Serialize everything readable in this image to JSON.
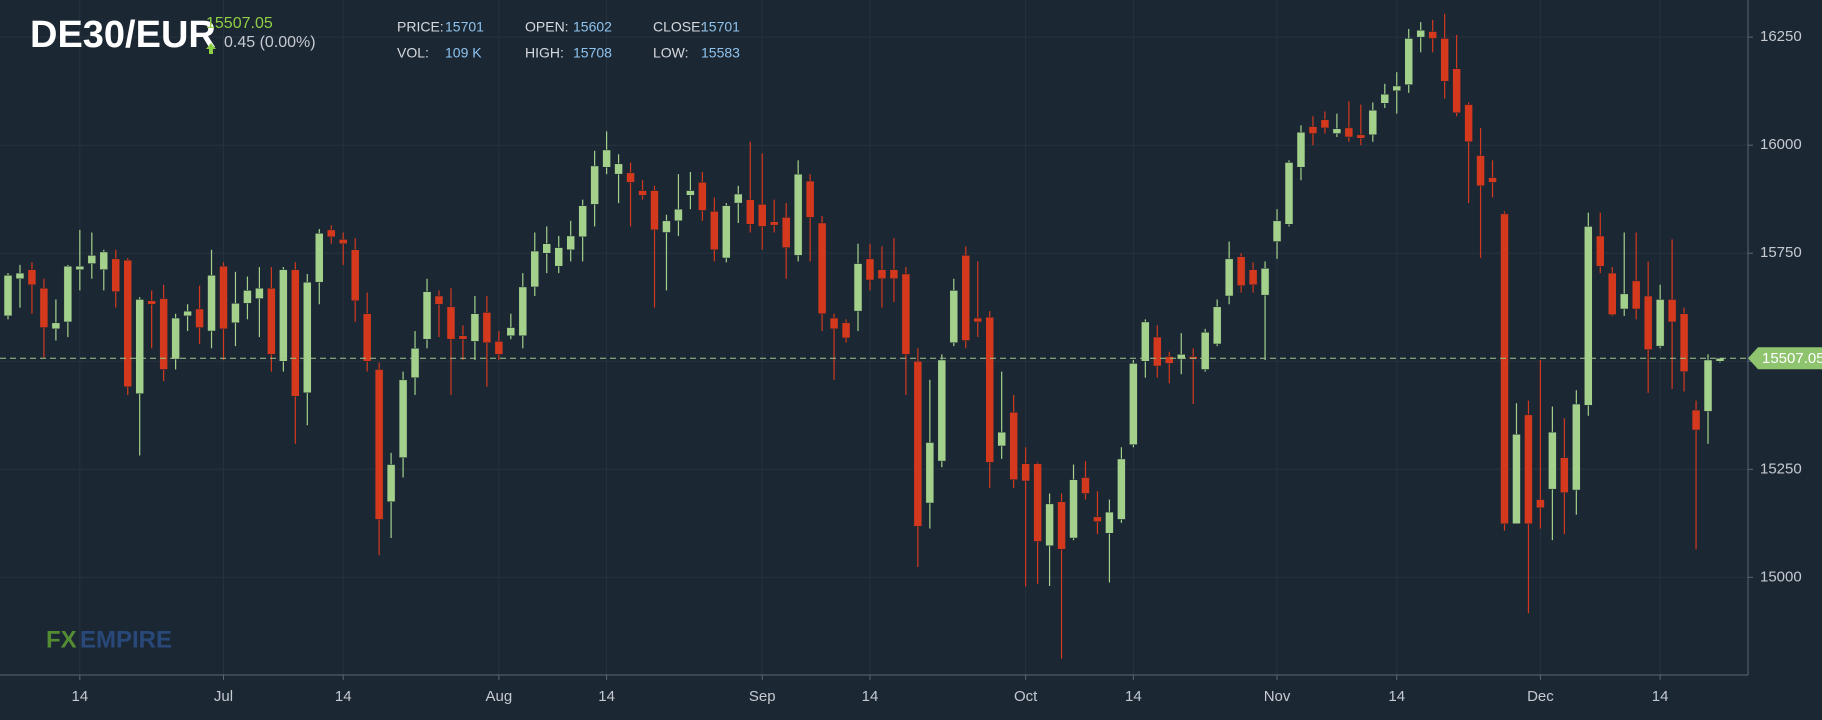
{
  "header": {
    "symbol": "DE30/EUR",
    "price": 15507.05,
    "change": "0.45 (0.00%)",
    "stats": [
      {
        "label": "PRICE:",
        "value": 15701
      },
      {
        "label": "OPEN:",
        "value": 15602
      },
      {
        "label": "CLOSE:",
        "value": 15701
      },
      {
        "label": "VOL:",
        "value": "109 K"
      },
      {
        "label": "HIGH:",
        "value": 15708
      },
      {
        "label": "LOW:",
        "value": 15583
      }
    ]
  },
  "watermark": {
    "prefix": "FX",
    "suffix": "EMPIRE"
  },
  "chart_data": {
    "type": "candlestick",
    "up_color": "#a3d18b",
    "down_color": "#d4391d",
    "grid": true,
    "ylim": [
      14774,
      16336
    ],
    "yticks": [
      15000,
      15250,
      15500,
      15750,
      16000,
      16250
    ],
    "last_price": 15507.05,
    "categories": [
      null,
      null,
      null,
      null,
      null,
      null,
      "14",
      null,
      null,
      null,
      null,
      null,
      null,
      null,
      null,
      null,
      null,
      null,
      "Jul",
      null,
      null,
      null,
      null,
      null,
      null,
      null,
      null,
      null,
      "14",
      null,
      null,
      null,
      null,
      null,
      null,
      null,
      null,
      null,
      null,
      null,
      null,
      "Aug",
      null,
      null,
      null,
      null,
      null,
      null,
      null,
      null,
      "14",
      null,
      null,
      null,
      null,
      null,
      null,
      null,
      null,
      null,
      null,
      null,
      null,
      "Sep",
      null,
      null,
      null,
      null,
      null,
      null,
      null,
      null,
      "14",
      null,
      null,
      null,
      null,
      null,
      null,
      null,
      null,
      null,
      null,
      null,
      null,
      "Oct",
      null,
      null,
      null,
      null,
      null,
      null,
      null,
      null,
      "14",
      null,
      null,
      null,
      null,
      null,
      null,
      null,
      null,
      null,
      null,
      null,
      "Nov",
      null,
      null,
      null,
      null,
      null,
      null,
      null,
      null,
      null,
      "14",
      null,
      null,
      null,
      null,
      null,
      null,
      null,
      null,
      null,
      null,
      null,
      "Dec",
      null,
      null,
      null,
      null,
      null,
      null,
      null,
      null,
      null,
      "14",
      null,
      null,
      null,
      null,
      null
    ],
    "open": [
      15605,
      15691,
      15712,
      15669,
      15575,
      15591,
      15712,
      15726,
      15712,
      15737,
      15734,
      15425,
      15640,
      15645,
      15505,
      15605,
      15621,
      15570,
      15720,
      15589,
      15634,
      15645,
      15669,
      15500,
      15712,
      15427,
      15683,
      15804,
      15782,
      15758,
      15610,
      15481,
      15175,
      15277,
      15462,
      15551,
      15651,
      15626,
      15559,
      15546,
      15613,
      15546,
      15559,
      15559,
      15672,
      15750,
      15720,
      15758,
      15788,
      15863,
      15949,
      15933,
      15936,
      15895,
      15895,
      15798,
      15825,
      15884,
      15914,
      15847,
      15739,
      15866,
      15874,
      15863,
      15823,
      15833,
      15745,
      15917,
      15820,
      15600,
      15589,
      15616,
      15737,
      15712,
      15712,
      15702,
      15500,
      15172,
      15269,
      15543,
      15745,
      15600,
      15602,
      15304,
      15382,
      15263,
      15263,
      15073,
      15175,
      15091,
      15231,
      15140,
      15102,
      15134,
      15307,
      15500,
      15556,
      15511,
      15505,
      15511,
      15481,
      15540,
      15651,
      15742,
      15712,
      15653,
      15777,
      15817,
      15949,
      16043,
      16059,
      16027,
      16040,
      16024,
      16024,
      16097,
      16126,
      16140,
      16250,
      16263,
      16247,
      16177,
      16094,
      15976,
      15925,
      15841,
      15124,
      15376,
      15180,
      15204,
      15277,
      15202,
      15398,
      15790,
      15704,
      15621,
      15686,
      15651,
      15535,
      15643,
      15610,
      15387,
      15384,
      15500
    ],
    "high": [
      15704,
      15723,
      15729,
      15691,
      15643,
      15723,
      15804,
      15798,
      15758,
      15758,
      15739,
      15648,
      15664,
      15677,
      15610,
      15632,
      15675,
      15758,
      15729,
      15707,
      15696,
      15718,
      15718,
      15718,
      15729,
      15702,
      15806,
      15815,
      15798,
      15785,
      15659,
      15497,
      15288,
      15476,
      15570,
      15691,
      15664,
      15669,
      15583,
      15651,
      15651,
      15570,
      15610,
      15704,
      15798,
      15812,
      15790,
      15825,
      15874,
      15987,
      16032,
      15979,
      15960,
      15919,
      15906,
      15839,
      15933,
      15938,
      15938,
      15879,
      15866,
      15906,
      16008,
      15981,
      15874,
      15866,
      15965,
      15933,
      15836,
      15610,
      15597,
      15772,
      15772,
      15766,
      15785,
      15718,
      15530,
      15457,
      15516,
      15691,
      15766,
      15731,
      15616,
      15476,
      15422,
      15301,
      15266,
      15194,
      15194,
      15261,
      15269,
      15199,
      15180,
      15301,
      15503,
      15597,
      15583,
      15522,
      15565,
      15530,
      15575,
      15643,
      15777,
      15750,
      15729,
      15731,
      15852,
      15965,
      16046,
      16067,
      16078,
      16073,
      16102,
      16094,
      16099,
      16142,
      16169,
      16269,
      16285,
      16290,
      16304,
      16255,
      16099,
      16040,
      15965,
      15847,
      15403,
      15409,
      15503,
      15395,
      15368,
      15433,
      15844,
      15844,
      15718,
      15798,
      15798,
      15731,
      15677,
      15782,
      15624,
      15409,
      15516,
      15508
    ],
    "low": [
      15597,
      15624,
      15610,
      15508,
      15548,
      15556,
      15664,
      15691,
      15664,
      15624,
      15422,
      15282,
      15530,
      15454,
      15481,
      15570,
      15540,
      15530,
      15503,
      15535,
      15597,
      15556,
      15476,
      15476,
      15309,
      15352,
      15632,
      15772,
      15723,
      15591,
      15476,
      15051,
      15091,
      15231,
      15422,
      15530,
      15556,
      15422,
      15503,
      15503,
      15441,
      15503,
      15551,
      15530,
      15651,
      15704,
      15704,
      15731,
      15731,
      15812,
      15933,
      15866,
      15812,
      15874,
      15624,
      15664,
      15790,
      15852,
      15825,
      15731,
      15729,
      15820,
      15798,
      15758,
      15798,
      15691,
      15731,
      15731,
      15570,
      15457,
      15543,
      15570,
      15664,
      15624,
      15637,
      15422,
      15024,
      15113,
      15255,
      15535,
      15530,
      15556,
      15207,
      15274,
      15207,
      14979,
      14985,
      14980,
      14812,
      15086,
      15180,
      15100,
      14988,
      15126,
      15301,
      15462,
      15462,
      15449,
      15470,
      15401,
      15476,
      15535,
      15632,
      15659,
      15659,
      15503,
      15737,
      15812,
      15919,
      16000,
      16027,
      16019,
      16008,
      16000,
      16008,
      16086,
      16073,
      16121,
      16215,
      16215,
      16108,
      16067,
      15866,
      15739,
      15879,
      15108,
      15124,
      14917,
      15113,
      15086,
      15100,
      15145,
      15374,
      15704,
      15605,
      15605,
      15597,
      15427,
      15530,
      15436,
      15430,
      15065,
      15309,
      15497
    ],
    "close": [
      15699,
      15704,
      15677,
      15578,
      15589,
      15720,
      15720,
      15745,
      15753,
      15661,
      15441,
      15643,
      15632,
      15481,
      15600,
      15616,
      15578,
      15699,
      15575,
      15634,
      15664,
      15669,
      15516,
      15712,
      15419,
      15683,
      15796,
      15788,
      15772,
      15640,
      15500,
      15134,
      15261,
      15457,
      15530,
      15661,
      15632,
      15551,
      15551,
      15610,
      15543,
      15516,
      15578,
      15672,
      15755,
      15772,
      15763,
      15790,
      15860,
      15952,
      15989,
      15957,
      15914,
      15884,
      15804,
      15825,
      15852,
      15895,
      15849,
      15758,
      15860,
      15887,
      15817,
      15812,
      15815,
      15763,
      15933,
      15833,
      15610,
      15575,
      15554,
      15726,
      15688,
      15691,
      15691,
      15516,
      15118,
      15312,
      15503,
      15664,
      15548,
      15591,
      15266,
      15336,
      15226,
      15223,
      15083,
      15170,
      15065,
      15226,
      15194,
      15129,
      15151,
      15274,
      15495,
      15591,
      15489,
      15495,
      15516,
      15505,
      15567,
      15626,
      15737,
      15675,
      15677,
      15715,
      15825,
      15960,
      16030,
      16027,
      16040,
      16038,
      16019,
      16016,
      16081,
      16118,
      16137,
      16247,
      16266,
      16247,
      16148,
      16075,
      16008,
      15906,
      15914,
      15124,
      15331,
      15124,
      15161,
      15336,
      15196,
      15401,
      15812,
      15720,
      15608,
      15656,
      15621,
      15527,
      15643,
      15591,
      15476,
      15341,
      15503,
      15507
    ]
  }
}
